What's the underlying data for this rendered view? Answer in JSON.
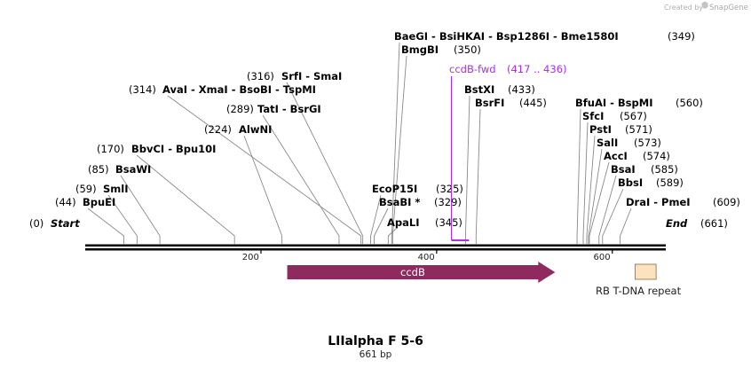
{
  "credit": {
    "prefix": "Created by",
    "brand": "SnapGene"
  },
  "title": "LIIalpha F 5-6",
  "length_label": "661 bp",
  "ends": [
    {
      "pos": "(0)",
      "name": "Start"
    },
    {
      "name": "End",
      "pos": "(661)"
    }
  ],
  "enzymes": [
    {
      "names": [
        "BpuEI"
      ],
      "pos": "(44)",
      "bp": 44
    },
    {
      "names": [
        "SmlI"
      ],
      "pos": "(59)",
      "bp": 59
    },
    {
      "names": [
        "BsaWI"
      ],
      "pos": "(85)",
      "bp": 85
    },
    {
      "names": [
        "BbvCI",
        "Bpu10I"
      ],
      "pos": "(170)",
      "bp": 170
    },
    {
      "names": [
        "AlwNI"
      ],
      "pos": "(224)",
      "bp": 224
    },
    {
      "names": [
        "TatI",
        "BsrGI"
      ],
      "pos": "(289)",
      "bp": 289
    },
    {
      "names": [
        "AvaI",
        "XmaI",
        "BsoBI",
        "TspMI"
      ],
      "pos": "(314)",
      "bp": 314
    },
    {
      "names": [
        "SrfI",
        "SmaI"
      ],
      "pos": "(316)",
      "bp": 316
    },
    {
      "names": [
        "EcoP15I"
      ],
      "pos": "(325)",
      "bp": 325
    },
    {
      "names": [
        "BsaBI *"
      ],
      "pos": "(329)",
      "bp": 329
    },
    {
      "names": [
        "ApaLI"
      ],
      "pos": "(345)",
      "bp": 345
    },
    {
      "names": [
        "BaeGI",
        "BsiHKAI",
        "Bsp1286I",
        "Bme1580I"
      ],
      "pos": "(349)",
      "bp": 349
    },
    {
      "names": [
        "BmgBI"
      ],
      "pos": "(350)",
      "bp": 350
    },
    {
      "names": [
        "BstXI"
      ],
      "pos": "(433)",
      "bp": 433
    },
    {
      "names": [
        "BsrFI"
      ],
      "pos": "(445)",
      "bp": 445
    },
    {
      "names": [
        "BfuAI",
        "BspMI"
      ],
      "pos": "(560)",
      "bp": 560
    },
    {
      "names": [
        "SfcI"
      ],
      "pos": "(567)",
      "bp": 567
    },
    {
      "names": [
        "PstI"
      ],
      "pos": "(571)",
      "bp": 571
    },
    {
      "names": [
        "SalI"
      ],
      "pos": "(573)",
      "bp": 573
    },
    {
      "names": [
        "AccI"
      ],
      "pos": "(574)",
      "bp": 574
    },
    {
      "names": [
        "BsaI"
      ],
      "pos": "(585)",
      "bp": 585
    },
    {
      "names": [
        "BbsI"
      ],
      "pos": "(589)",
      "bp": 589
    },
    {
      "names": [
        "DraI",
        "PmeI"
      ],
      "pos": "(609)",
      "bp": 609
    }
  ],
  "primer": {
    "name": "ccdB-fwd",
    "range": "(417 .. 436)",
    "start": 417,
    "end": 436
  },
  "ruler": {
    "ticks": [
      "200",
      "400",
      "600"
    ],
    "values": [
      200,
      400,
      600
    ],
    "total": 661
  },
  "features": [
    {
      "name": "ccdB",
      "start": 230,
      "end": 535,
      "color": "#8e2a5e",
      "direction": "forward"
    },
    {
      "name": "RB T-DNA repeat",
      "start": 626,
      "end": 650,
      "color": "#fde2c0",
      "direction": "none"
    }
  ]
}
